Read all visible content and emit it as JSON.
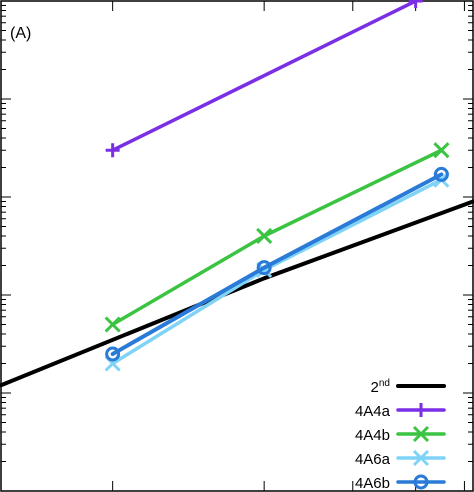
{
  "chart_data": {
    "type": "line",
    "panel_label": "(A)",
    "xscale": "log",
    "yscale": "log",
    "xlim": [
      0.6,
      5.2
    ],
    "ylim": [
      0.0001,
      10
    ],
    "grid": false,
    "legend_position": "bottom-right",
    "series": [
      {
        "name": "2",
        "name_superscript": "nd",
        "color": "#000000",
        "marker": "none",
        "x": [
          0.6,
          2.0,
          5.2
        ],
        "y": [
          0.0012,
          0.0148,
          0.09
        ]
      },
      {
        "name": "4A4a",
        "color": "#7a2ee6",
        "marker": "plus",
        "x": [
          1.0,
          4.0
        ],
        "y": [
          0.3,
          10
        ]
      },
      {
        "name": "4A4b",
        "color": "#3ac441",
        "marker": "x",
        "x": [
          1.0,
          2.0,
          4.5
        ],
        "y": [
          0.005,
          0.04,
          0.3
        ]
      },
      {
        "name": "4A6a",
        "color": "#7fd3f7",
        "marker": "x",
        "x": [
          1.0,
          2.0,
          4.5
        ],
        "y": [
          0.002,
          0.018,
          0.15
        ]
      },
      {
        "name": "4A6b",
        "color": "#2a7ad8",
        "marker": "circle",
        "x": [
          1.0,
          2.0,
          4.5
        ],
        "y": [
          0.0025,
          0.019,
          0.17
        ]
      }
    ]
  }
}
